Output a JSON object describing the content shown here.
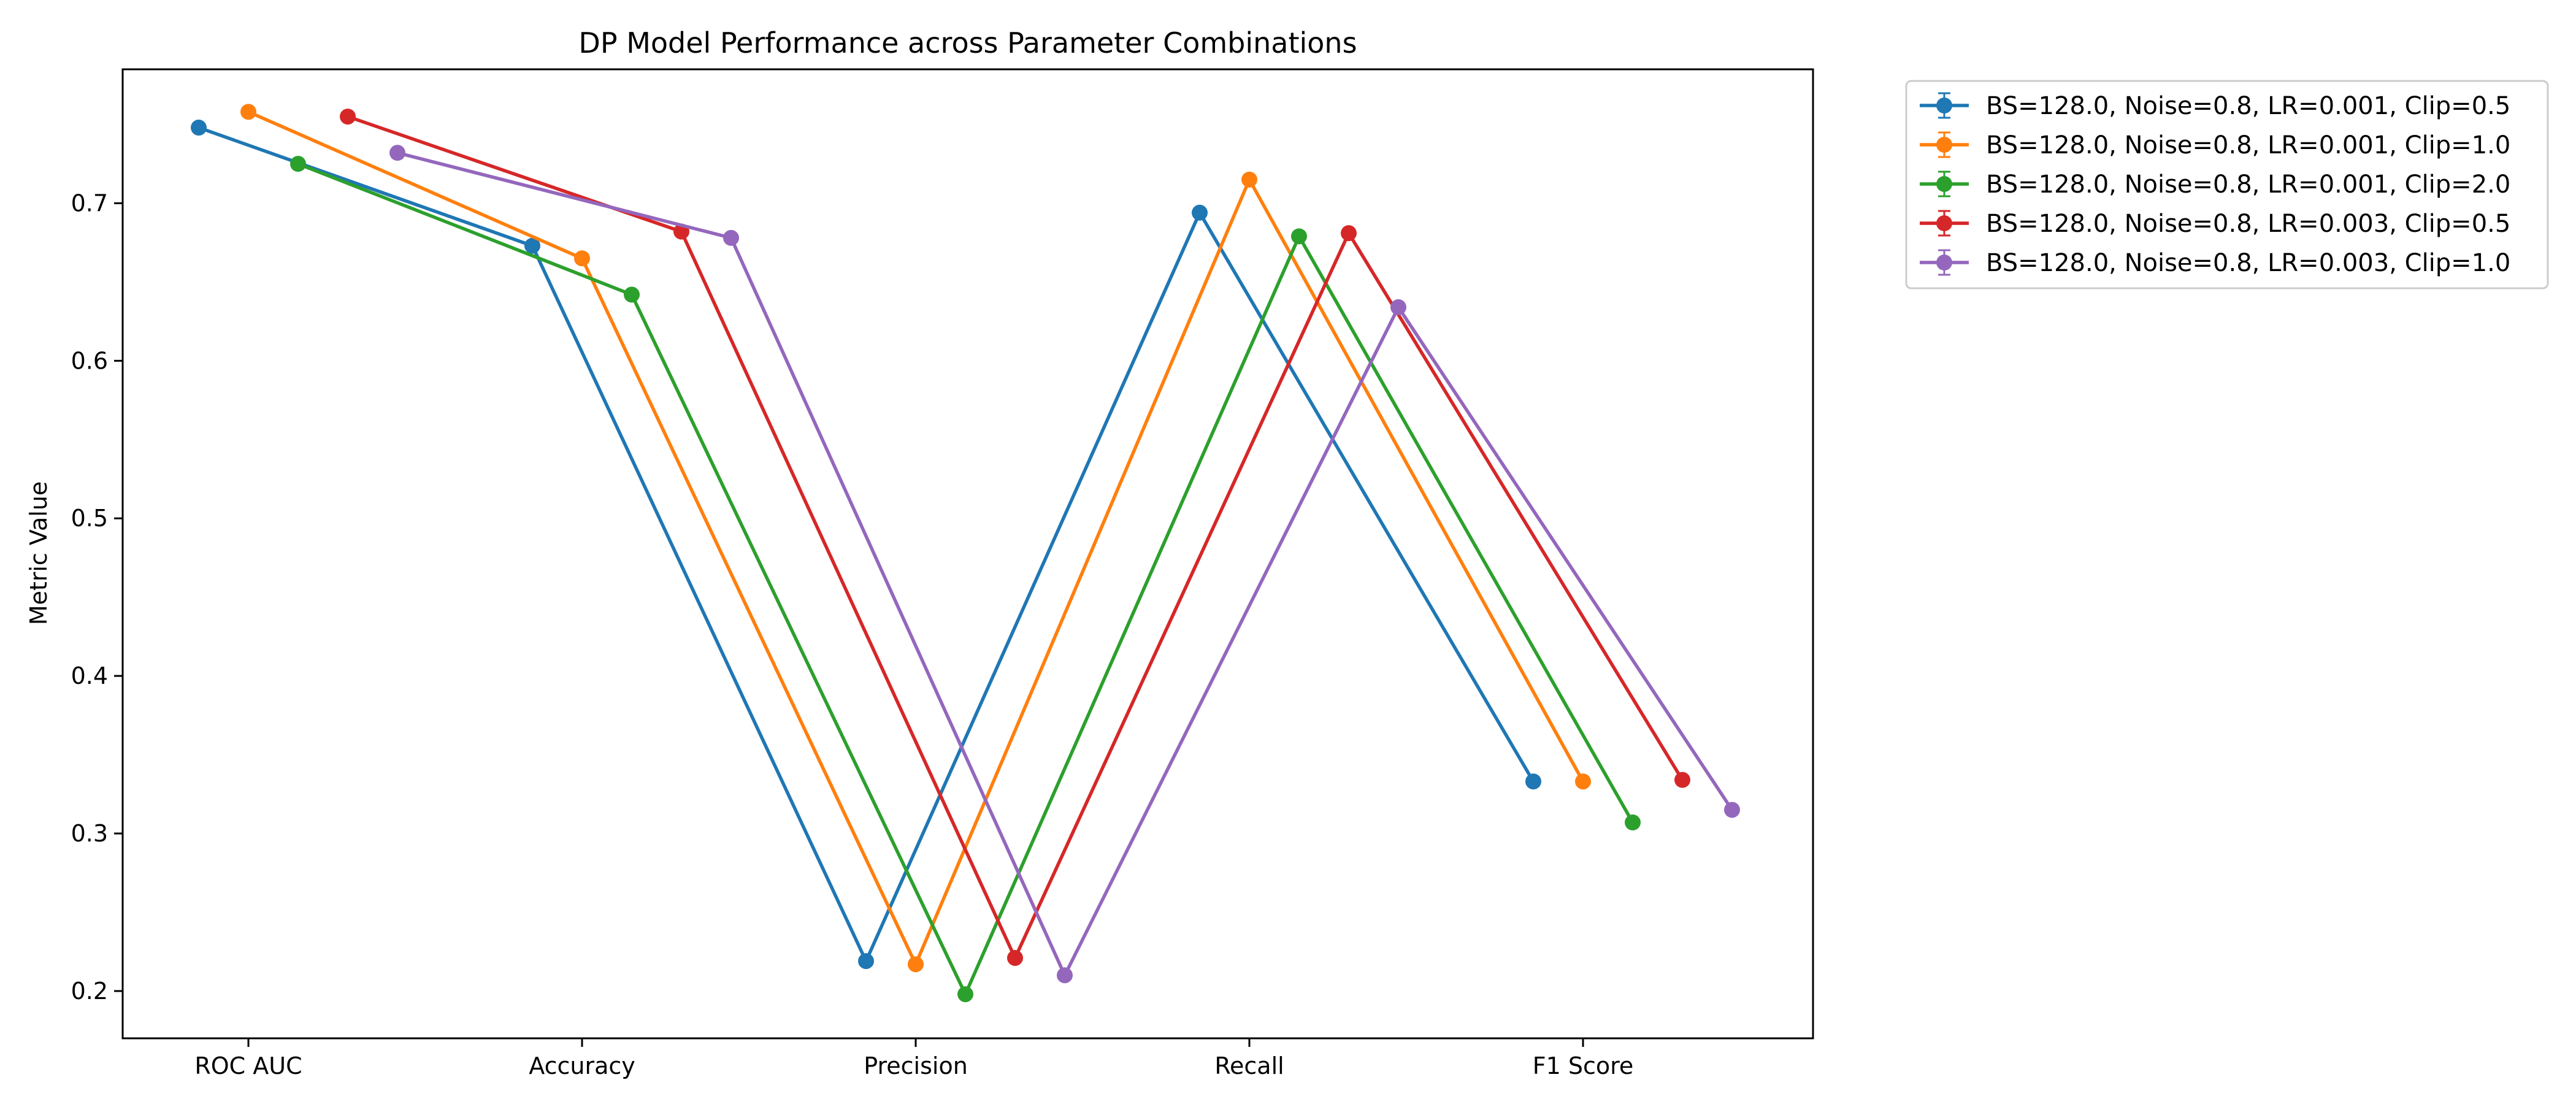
{
  "chart_data": {
    "type": "line",
    "title": "DP Model Performance across Parameter Combinations",
    "xlabel": "",
    "ylabel": "Metric Value",
    "categories": [
      "ROC AUC",
      "Accuracy",
      "Precision",
      "Recall",
      "F1 Score"
    ],
    "ylim": [
      0.17,
      0.785
    ],
    "yticks": [
      0.2,
      0.3,
      0.4,
      0.5,
      0.6,
      0.7
    ],
    "ytick_labels": [
      "0.2",
      "0.3",
      "0.4",
      "0.5",
      "0.6",
      "0.7"
    ],
    "grid": false,
    "legend_position": "outside-top-right",
    "series": [
      {
        "name": "BS=128.0, Noise=0.8, LR=0.001, Clip=0.5",
        "color": "#1f77b4",
        "values": [
          0.748,
          0.673,
          0.219,
          0.694,
          0.333
        ]
      },
      {
        "name": "BS=128.0, Noise=0.8, LR=0.001, Clip=1.0",
        "color": "#ff7f0e",
        "values": [
          0.758,
          0.665,
          0.217,
          0.715,
          0.333
        ]
      },
      {
        "name": "BS=128.0, Noise=0.8, LR=0.001, Clip=2.0",
        "color": "#2ca02c",
        "values": [
          0.725,
          0.642,
          0.198,
          0.679,
          0.307
        ]
      },
      {
        "name": "BS=128.0, Noise=0.8, LR=0.003, Clip=0.5",
        "color": "#d62728",
        "values": [
          0.755,
          0.682,
          0.221,
          0.681,
          0.334
        ]
      },
      {
        "name": "BS=128.0, Noise=0.8, LR=0.003, Clip=1.0",
        "color": "#9467bd",
        "values": [
          0.732,
          0.678,
          0.21,
          0.634,
          0.315
        ]
      }
    ]
  }
}
